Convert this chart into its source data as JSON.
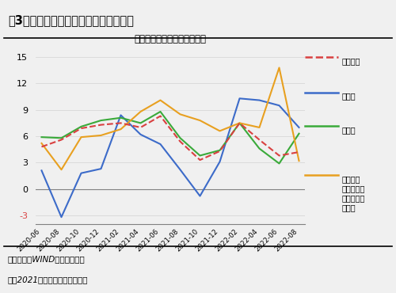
{
  "title_main": "图3：制造业是支撑工业生产回升的主力",
  "title_sub": "工业增加值同比增长率－当月",
  "source_note": "资料来源：WIND，财信研究院",
  "note2": "注：2021年数据为两年平均增速",
  "ylim": [
    -4,
    16
  ],
  "yticks": [
    -3,
    0,
    3,
    6,
    9,
    12,
    15
  ],
  "x_labels": [
    "2020-06",
    "2020-08",
    "2020-10",
    "2020-12",
    "2021-02",
    "2021-04",
    "2021-06",
    "2021-08",
    "2021-10",
    "2021-12",
    "2022-02",
    "2022-04",
    "2022-06",
    "2022-08"
  ],
  "quanbu": [
    4.8,
    5.6,
    6.9,
    7.3,
    7.5,
    7.0,
    8.3,
    5.4,
    3.3,
    4.3,
    7.5,
    5.6,
    3.8,
    4.2
  ],
  "caikuang": [
    2.1,
    -3.2,
    1.8,
    2.3,
    8.4,
    6.2,
    5.1,
    2.2,
    -0.8,
    3.1,
    10.3,
    10.1,
    9.5,
    7.0
  ],
  "zhizao": [
    5.9,
    5.8,
    7.1,
    7.8,
    8.1,
    7.5,
    8.8,
    5.8,
    3.8,
    4.4,
    7.5,
    4.6,
    2.9,
    6.3
  ],
  "dianli": [
    5.2,
    2.2,
    5.9,
    6.1,
    6.8,
    8.8,
    10.1,
    8.5,
    7.8,
    6.6,
    7.5,
    7.0,
    13.8,
    3.2
  ],
  "quanbu_color": "#d94040",
  "caikuang_color": "#3c6bc9",
  "zhizao_color": "#3aaa3a",
  "dianli_color": "#e8a020",
  "background_color": "#f0f0f0",
  "plot_bg_color": "#f0f0f0"
}
